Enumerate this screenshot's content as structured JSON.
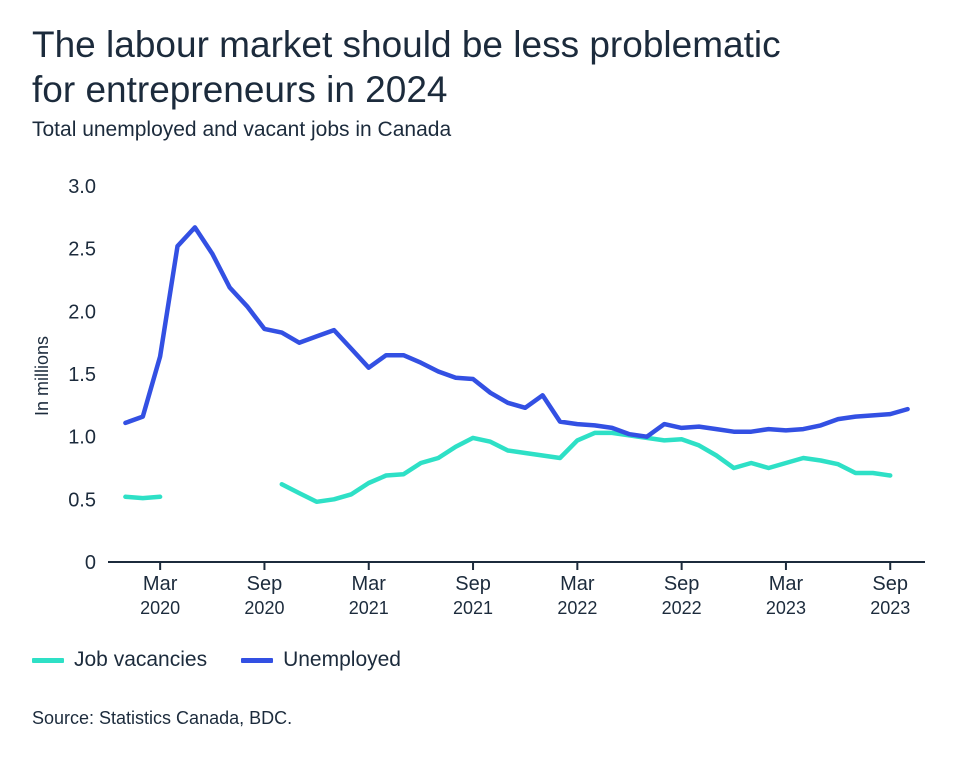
{
  "header": {
    "title_line1": "The labour market should be less problematic",
    "title_line2": "for entrepreneurs in 2024",
    "subtitle": "Total unemployed and vacant jobs in Canada"
  },
  "source": "Source: Statistics Canada, BDC.",
  "colors": {
    "vacancies": "#2ee0c6",
    "unemployed": "#3350e3",
    "axis": "#1c2b3c"
  },
  "chart_data": {
    "type": "line",
    "ylabel": "In millions",
    "ylim": [
      0,
      3.0
    ],
    "yticks": [
      {
        "value": 0,
        "label": "0"
      },
      {
        "value": 0.5,
        "label": "0.5"
      },
      {
        "value": 1.0,
        "label": "1.0"
      },
      {
        "value": 1.5,
        "label": "1.5"
      },
      {
        "value": 2.0,
        "label": "2.0"
      },
      {
        "value": 2.5,
        "label": "2.5"
      },
      {
        "value": 3.0,
        "label": "3.0"
      }
    ],
    "xlim": [
      "2019-12",
      "2023-11"
    ],
    "xticks": [
      {
        "x": "2020-03",
        "line1": "Mar",
        "line2": "2020"
      },
      {
        "x": "2020-09",
        "line1": "Sep",
        "line2": "2020"
      },
      {
        "x": "2021-03",
        "line1": "Mar",
        "line2": "2021"
      },
      {
        "x": "2021-09",
        "line1": "Sep",
        "line2": "2021"
      },
      {
        "x": "2022-03",
        "line1": "Mar",
        "line2": "2022"
      },
      {
        "x": "2022-09",
        "line1": "Sep",
        "line2": "2022"
      },
      {
        "x": "2023-03",
        "line1": "Mar",
        "line2": "2023"
      },
      {
        "x": "2023-09",
        "line1": "Sep",
        "line2": "2023"
      }
    ],
    "series": [
      {
        "name": "Job vacancies",
        "color": "#2ee0c6",
        "x": [
          "2020-01",
          "2020-02",
          "2020-03",
          "2020-10",
          "2020-11",
          "2020-12",
          "2021-01",
          "2021-02",
          "2021-03",
          "2021-04",
          "2021-05",
          "2021-06",
          "2021-07",
          "2021-08",
          "2021-09",
          "2021-10",
          "2021-11",
          "2021-12",
          "2022-01",
          "2022-02",
          "2022-03",
          "2022-04",
          "2022-05",
          "2022-06",
          "2022-07",
          "2022-08",
          "2022-09",
          "2022-10",
          "2022-11",
          "2022-12",
          "2023-01",
          "2023-02",
          "2023-03",
          "2023-04",
          "2023-05",
          "2023-06",
          "2023-07",
          "2023-08",
          "2023-09"
        ],
        "values": [
          0.52,
          0.51,
          0.52,
          0.62,
          0.55,
          0.48,
          0.5,
          0.54,
          0.63,
          0.69,
          0.7,
          0.79,
          0.83,
          0.92,
          0.99,
          0.96,
          0.89,
          0.87,
          0.85,
          0.83,
          0.97,
          1.03,
          1.03,
          1.01,
          0.99,
          0.97,
          0.98,
          0.93,
          0.85,
          0.75,
          0.79,
          0.75,
          0.79,
          0.83,
          0.81,
          0.78,
          0.71,
          0.71,
          0.69
        ],
        "gaps_after": [
          "2020-03"
        ]
      },
      {
        "name": "Unemployed",
        "color": "#3350e3",
        "x": [
          "2020-01",
          "2020-02",
          "2020-03",
          "2020-04",
          "2020-05",
          "2020-06",
          "2020-07",
          "2020-08",
          "2020-09",
          "2020-10",
          "2020-11",
          "2020-12",
          "2021-01",
          "2021-02",
          "2021-03",
          "2021-04",
          "2021-05",
          "2021-06",
          "2021-07",
          "2021-08",
          "2021-09",
          "2021-10",
          "2021-11",
          "2021-12",
          "2022-01",
          "2022-02",
          "2022-03",
          "2022-04",
          "2022-05",
          "2022-06",
          "2022-07",
          "2022-08",
          "2022-09",
          "2022-10",
          "2022-11",
          "2022-12",
          "2023-01",
          "2023-02",
          "2023-03",
          "2023-04",
          "2023-05",
          "2023-06",
          "2023-07",
          "2023-08",
          "2023-09",
          "2023-10"
        ],
        "values": [
          1.11,
          1.16,
          1.64,
          2.52,
          2.67,
          2.46,
          2.19,
          2.04,
          1.86,
          1.83,
          1.75,
          1.8,
          1.85,
          1.7,
          1.55,
          1.65,
          1.65,
          1.59,
          1.52,
          1.47,
          1.46,
          1.35,
          1.27,
          1.23,
          1.33,
          1.12,
          1.1,
          1.09,
          1.07,
          1.02,
          1.0,
          1.1,
          1.07,
          1.08,
          1.06,
          1.04,
          1.04,
          1.06,
          1.05,
          1.06,
          1.09,
          1.14,
          1.16,
          1.17,
          1.18,
          1.22
        ]
      }
    ],
    "legend": {
      "placement": "bottom-left"
    }
  }
}
